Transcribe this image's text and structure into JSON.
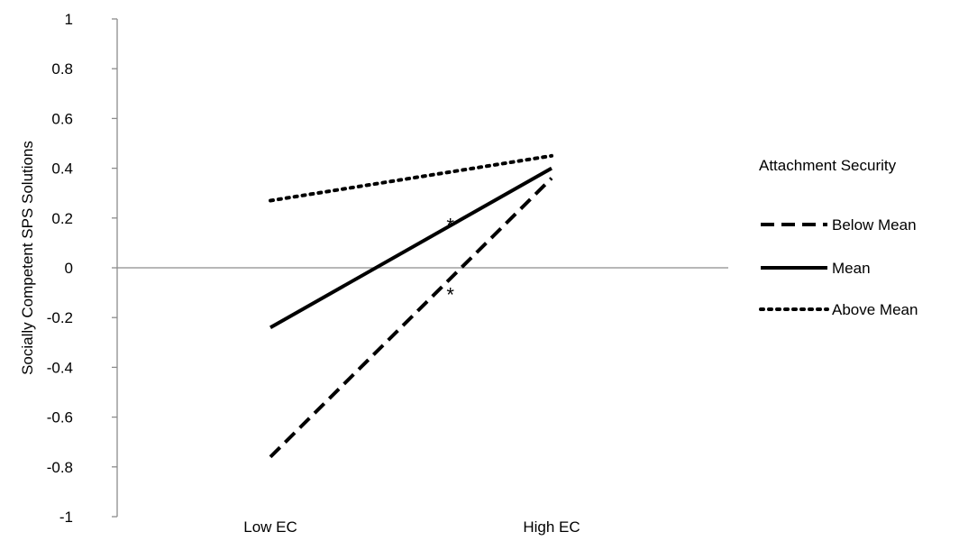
{
  "chart_data": {
    "type": "line",
    "title": "",
    "xlabel": "",
    "ylabel": "Socially Competent SPS Solutions",
    "categories": [
      "Low EC",
      "High EC"
    ],
    "ylim": [
      -1,
      1
    ],
    "yticks": [
      1,
      0.8,
      0.6,
      0.4,
      0.2,
      0,
      -0.2,
      -0.4,
      -0.6,
      -0.8,
      -1
    ],
    "ytick_labels": [
      "1",
      "0.8",
      "0.6",
      "0.4",
      "0.2",
      "0",
      "-0.2",
      "-0.4",
      "-0.6",
      "-0.8",
      "-1"
    ],
    "grid": false,
    "legend_title": "Attachment Security",
    "legend_position": "right",
    "series": [
      {
        "name": "Below Mean",
        "values": [
          -0.76,
          0.36
        ],
        "style": "dashed",
        "color": "#000000"
      },
      {
        "name": "Mean",
        "values": [
          -0.24,
          0.4
        ],
        "style": "solid",
        "color": "#000000"
      },
      {
        "name": "Above Mean",
        "values": [
          0.27,
          0.45
        ],
        "style": "dotted",
        "color": "#000000"
      }
    ],
    "annotations": [
      {
        "text": "*",
        "category_pos": 0.64,
        "y": 0.18
      },
      {
        "text": "*",
        "category_pos": 0.64,
        "y": -0.1
      }
    ],
    "axis_color": "#8c8c8c"
  }
}
